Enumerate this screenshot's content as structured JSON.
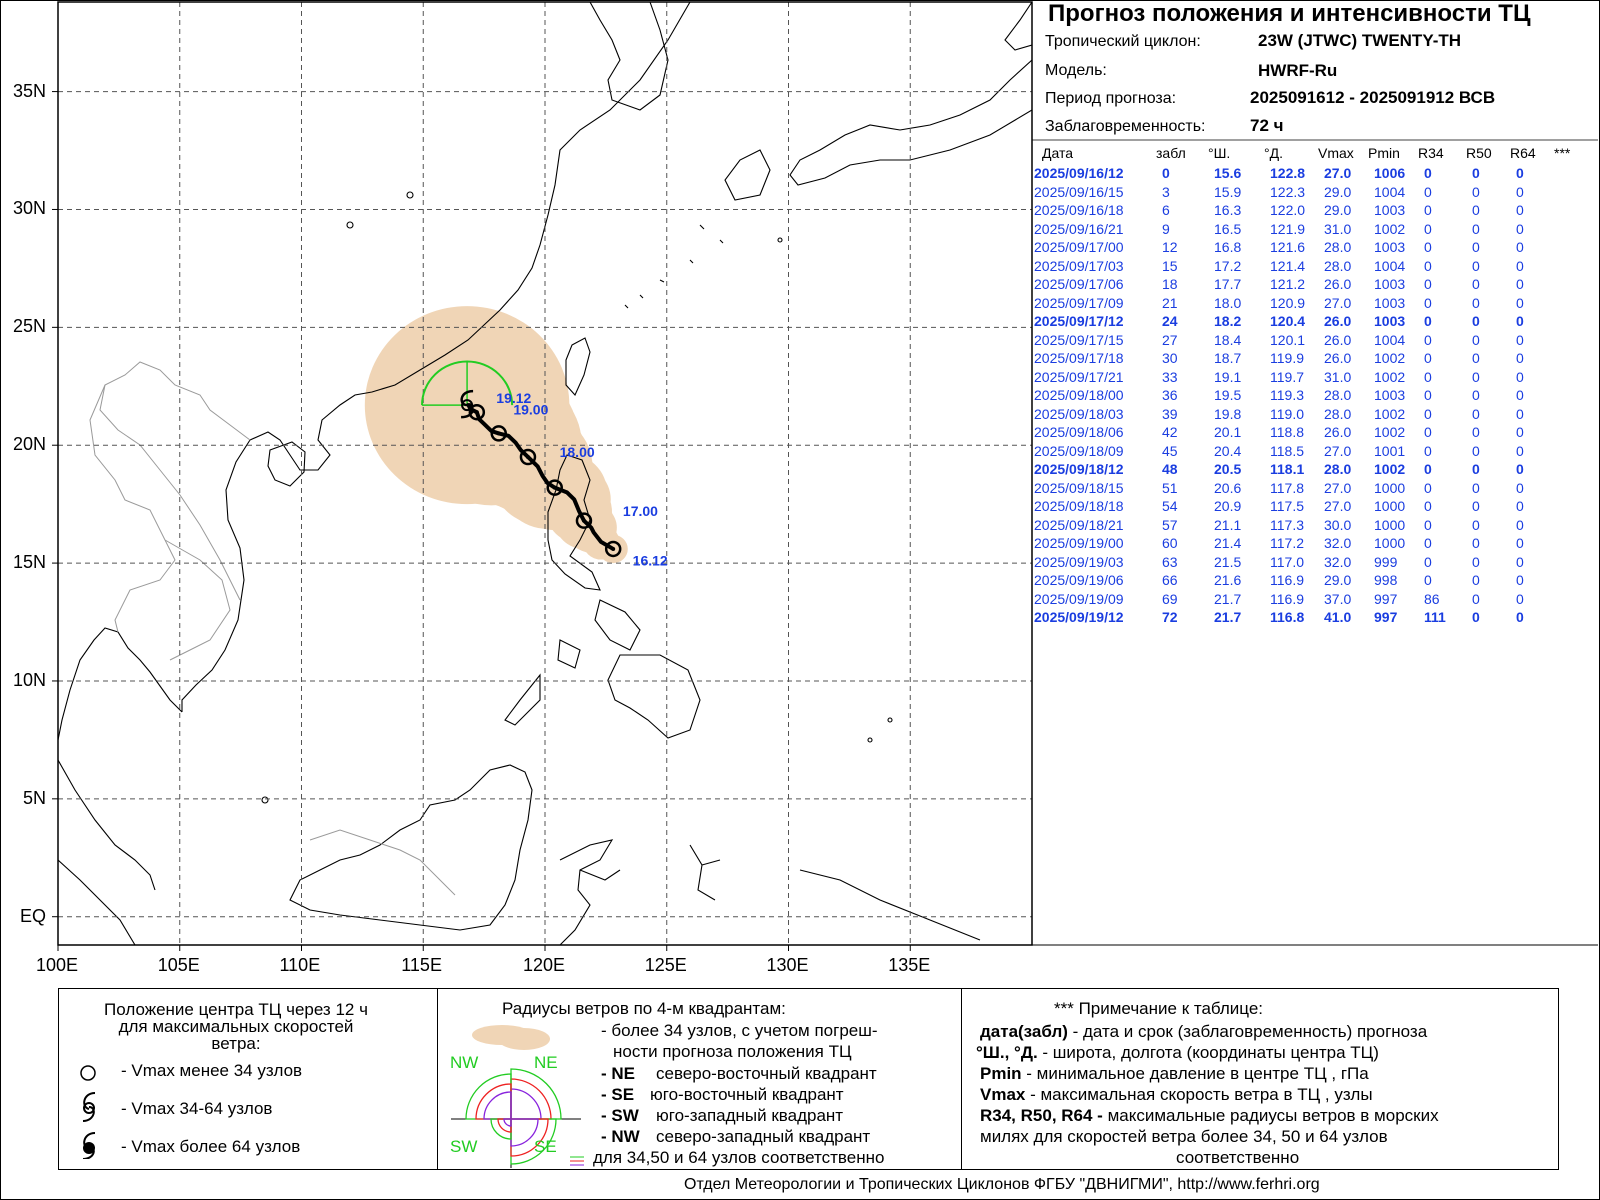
{
  "header": {
    "title": "Прогноз положения и интенсивности ТЦ",
    "cyclone_label": "Тропический циклон:",
    "cyclone_value": "23W (JTWC)  TWENTY-TH",
    "model_label": "Модель:",
    "model_value": "HWRF-Ru",
    "period_label": "Период прогноза:",
    "period_value": "2025091612 - 2025091912 ВСВ",
    "lead_label": "Заблаговременность:",
    "lead_value": "72 ч"
  },
  "table": {
    "columns": [
      "Дата",
      "забл",
      "°Ш.",
      "°Д.",
      "Vmax",
      "Pmin",
      "R34",
      "R50",
      "R64",
      "***"
    ],
    "rows": [
      {
        "date": "2025/09/16/12",
        "lead": "0",
        "lat": "15.6",
        "lon": "122.8",
        "vmax": "27.0",
        "pmin": "1006",
        "r34": "0",
        "r50": "0",
        "r64": "0",
        "bold": true
      },
      {
        "date": "2025/09/16/15",
        "lead": "3",
        "lat": "15.9",
        "lon": "122.3",
        "vmax": "29.0",
        "pmin": "1004",
        "r34": "0",
        "r50": "0",
        "r64": "0",
        "bold": false
      },
      {
        "date": "2025/09/16/18",
        "lead": "6",
        "lat": "16.3",
        "lon": "122.0",
        "vmax": "29.0",
        "pmin": "1003",
        "r34": "0",
        "r50": "0",
        "r64": "0",
        "bold": false
      },
      {
        "date": "2025/09/16/21",
        "lead": "9",
        "lat": "16.5",
        "lon": "121.9",
        "vmax": "31.0",
        "pmin": "1002",
        "r34": "0",
        "r50": "0",
        "r64": "0",
        "bold": false
      },
      {
        "date": "2025/09/17/00",
        "lead": "12",
        "lat": "16.8",
        "lon": "121.6",
        "vmax": "28.0",
        "pmin": "1003",
        "r34": "0",
        "r50": "0",
        "r64": "0",
        "bold": false
      },
      {
        "date": "2025/09/17/03",
        "lead": "15",
        "lat": "17.2",
        "lon": "121.4",
        "vmax": "28.0",
        "pmin": "1004",
        "r34": "0",
        "r50": "0",
        "r64": "0",
        "bold": false
      },
      {
        "date": "2025/09/17/06",
        "lead": "18",
        "lat": "17.7",
        "lon": "121.2",
        "vmax": "26.0",
        "pmin": "1003",
        "r34": "0",
        "r50": "0",
        "r64": "0",
        "bold": false
      },
      {
        "date": "2025/09/17/09",
        "lead": "21",
        "lat": "18.0",
        "lon": "120.9",
        "vmax": "27.0",
        "pmin": "1003",
        "r34": "0",
        "r50": "0",
        "r64": "0",
        "bold": false
      },
      {
        "date": "2025/09/17/12",
        "lead": "24",
        "lat": "18.2",
        "lon": "120.4",
        "vmax": "26.0",
        "pmin": "1003",
        "r34": "0",
        "r50": "0",
        "r64": "0",
        "bold": true
      },
      {
        "date": "2025/09/17/15",
        "lead": "27",
        "lat": "18.4",
        "lon": "120.1",
        "vmax": "26.0",
        "pmin": "1004",
        "r34": "0",
        "r50": "0",
        "r64": "0",
        "bold": false
      },
      {
        "date": "2025/09/17/18",
        "lead": "30",
        "lat": "18.7",
        "lon": "119.9",
        "vmax": "26.0",
        "pmin": "1002",
        "r34": "0",
        "r50": "0",
        "r64": "0",
        "bold": false
      },
      {
        "date": "2025/09/17/21",
        "lead": "33",
        "lat": "19.1",
        "lon": "119.7",
        "vmax": "31.0",
        "pmin": "1002",
        "r34": "0",
        "r50": "0",
        "r64": "0",
        "bold": false
      },
      {
        "date": "2025/09/18/00",
        "lead": "36",
        "lat": "19.5",
        "lon": "119.3",
        "vmax": "28.0",
        "pmin": "1003",
        "r34": "0",
        "r50": "0",
        "r64": "0",
        "bold": false
      },
      {
        "date": "2025/09/18/03",
        "lead": "39",
        "lat": "19.8",
        "lon": "119.0",
        "vmax": "28.0",
        "pmin": "1002",
        "r34": "0",
        "r50": "0",
        "r64": "0",
        "bold": false
      },
      {
        "date": "2025/09/18/06",
        "lead": "42",
        "lat": "20.1",
        "lon": "118.8",
        "vmax": "26.0",
        "pmin": "1002",
        "r34": "0",
        "r50": "0",
        "r64": "0",
        "bold": false
      },
      {
        "date": "2025/09/18/09",
        "lead": "45",
        "lat": "20.4",
        "lon": "118.5",
        "vmax": "27.0",
        "pmin": "1001",
        "r34": "0",
        "r50": "0",
        "r64": "0",
        "bold": false
      },
      {
        "date": "2025/09/18/12",
        "lead": "48",
        "lat": "20.5",
        "lon": "118.1",
        "vmax": "28.0",
        "pmin": "1002",
        "r34": "0",
        "r50": "0",
        "r64": "0",
        "bold": true
      },
      {
        "date": "2025/09/18/15",
        "lead": "51",
        "lat": "20.6",
        "lon": "117.8",
        "vmax": "27.0",
        "pmin": "1000",
        "r34": "0",
        "r50": "0",
        "r64": "0",
        "bold": false
      },
      {
        "date": "2025/09/18/18",
        "lead": "54",
        "lat": "20.9",
        "lon": "117.5",
        "vmax": "27.0",
        "pmin": "1000",
        "r34": "0",
        "r50": "0",
        "r64": "0",
        "bold": false
      },
      {
        "date": "2025/09/18/21",
        "lead": "57",
        "lat": "21.1",
        "lon": "117.3",
        "vmax": "30.0",
        "pmin": "1000",
        "r34": "0",
        "r50": "0",
        "r64": "0",
        "bold": false
      },
      {
        "date": "2025/09/19/00",
        "lead": "60",
        "lat": "21.4",
        "lon": "117.2",
        "vmax": "32.0",
        "pmin": "1000",
        "r34": "0",
        "r50": "0",
        "r64": "0",
        "bold": false
      },
      {
        "date": "2025/09/19/03",
        "lead": "63",
        "lat": "21.5",
        "lon": "117.0",
        "vmax": "32.0",
        "pmin": "999",
        "r34": "0",
        "r50": "0",
        "r64": "0",
        "bold": false
      },
      {
        "date": "2025/09/19/06",
        "lead": "66",
        "lat": "21.6",
        "lon": "116.9",
        "vmax": "29.0",
        "pmin": "998",
        "r34": "0",
        "r50": "0",
        "r64": "0",
        "bold": false
      },
      {
        "date": "2025/09/19/09",
        "lead": "69",
        "lat": "21.7",
        "lon": "116.9",
        "vmax": "37.0",
        "pmin": "997",
        "r34": "86",
        "r50": "0",
        "r64": "0",
        "bold": false
      },
      {
        "date": "2025/09/19/12",
        "lead": "72",
        "lat": "21.7",
        "lon": "116.8",
        "vmax": "41.0",
        "pmin": "997",
        "r34": "111",
        "r50": "0",
        "r64": "0",
        "bold": true
      }
    ]
  },
  "map": {
    "lon_min": 100,
    "lon_max": 140,
    "lat_min": -1.2,
    "lat_max": 38.8,
    "lon_ticks": [
      100,
      105,
      110,
      115,
      120,
      125,
      130,
      135
    ],
    "lon_tick_labels": [
      "100E",
      "105E",
      "110E",
      "115E",
      "120E",
      "125E",
      "130E",
      "135E"
    ],
    "lat_ticks": [
      0,
      5,
      10,
      15,
      20,
      25,
      30,
      35
    ],
    "lat_tick_labels": [
      "EQ",
      "5N",
      "10N",
      "15N",
      "20N",
      "25N",
      "30N",
      "35N"
    ],
    "track_labels": [
      {
        "text": "16.12",
        "lon": 123.6,
        "lat": 14.9
      },
      {
        "text": "17.00",
        "lon": 123.2,
        "lat": 17.0
      },
      {
        "text": "18.00",
        "lon": 120.6,
        "lat": 19.5
      },
      {
        "text": "19.00",
        "lon": 118.7,
        "lat": 21.3
      },
      {
        "text": "19.12",
        "lon": 118.0,
        "lat": 21.8
      }
    ],
    "colors": {
      "uncertainty": "#f0d5b6",
      "r34": "#22cc22",
      "track": "#000000",
      "label": "#1a3de0",
      "coast": "#000000",
      "border": "#9a9a9a",
      "grid": "#555555"
    }
  },
  "legend": {
    "box1": {
      "title1": "Положение центра ТЦ через 12 ч",
      "title2": "для максимальных скоростей",
      "title3": "ветра:",
      "item1": "- Vmax  менее 34 узлов",
      "item2": "- Vmax  34-64 узлов",
      "item3": "- Vmax  более 64 узлов"
    },
    "box2": {
      "title": "Радиусы ветров по 4-м квадрантам:",
      "l1": "- более 34 узлов, с учетом погреш-",
      "l2": "ности прогноза положения ТЦ",
      "ne_code": "- NE",
      "ne_text": "северо-восточный квадрант",
      "se_code": "- SE",
      "se_text": "юго-восточный квадрант",
      "sw_code": "- SW",
      "sw_text": "юго-западный квадрант",
      "nw_code": "- NW",
      "nw_text": "северо-западный квадрант",
      "last": "для 34,50 и 64 узлов соответственно",
      "q_nw": "NW",
      "q_ne": "NE",
      "q_sw": "SW",
      "q_se": "SE"
    },
    "box3": {
      "title": "*** Примечание к таблице:",
      "l1b": "дата(забл)",
      "l1": " - дата и срок (заблаговременность) прогноза",
      "l2b": "°Ш., °Д.",
      "l2": " - широта, долгота   (координаты центра ТЦ)",
      "l3b": "Pmin",
      "l3": "  - минимальное давление в центре ТЦ , гПа",
      "l4b": "Vmax",
      "l4": "   -  максимальная скорость ветра в ТЦ , узлы",
      "l5b": "R34, R50, R64 -",
      "l5": " максимальные радиусы ветров в морских",
      "l6": "милях для скоростей ветра более 34, 50 и 64 узлов",
      "l7": "соответственно"
    }
  },
  "footer": "Отдел Метеорологии и Тропических Циклонов ФГБУ \"ДВНИГМИ\",  http://www.ferhri.org"
}
